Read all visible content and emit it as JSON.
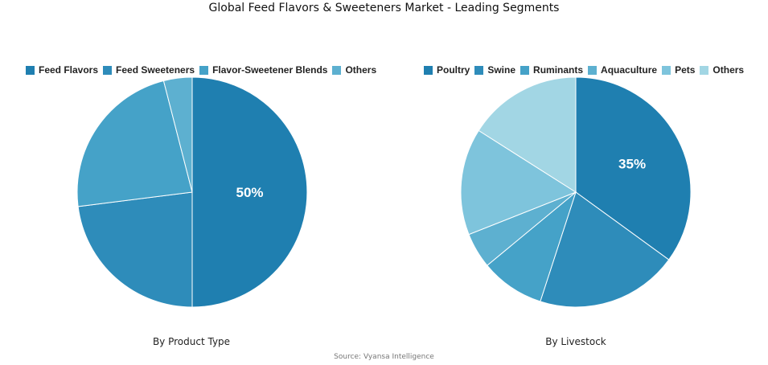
{
  "title": "Global Feed Flavors & Sweeteners Market - Leading Segments",
  "source": "Source: Vyansa Intelligence",
  "chart_data": [
    {
      "type": "pie",
      "subtitle": "By Product Type",
      "categories": [
        "Feed Flavors",
        "Feed Sweeteners",
        "Flavor-Sweetener Blends",
        "Others"
      ],
      "values": [
        50,
        23,
        23,
        4
      ],
      "colors": [
        "#1f7fb0",
        "#2e8cba",
        "#45a2c8",
        "#5db0d0"
      ],
      "data_labels": [
        "50%",
        "",
        "",
        ""
      ],
      "legend": "top"
    },
    {
      "type": "pie",
      "subtitle": "By Livestock",
      "categories": [
        "Poultry",
        "Swine",
        "Ruminants",
        "Aquaculture",
        "Pets",
        "Others"
      ],
      "values": [
        35,
        20,
        9,
        5,
        15,
        16
      ],
      "colors": [
        "#1f7fb0",
        "#2e8cba",
        "#45a2c8",
        "#5db0d0",
        "#7ec4dc",
        "#a2d6e4"
      ],
      "data_labels": [
        "35%",
        "",
        "",
        "",
        "",
        ""
      ],
      "legend": "top"
    }
  ]
}
